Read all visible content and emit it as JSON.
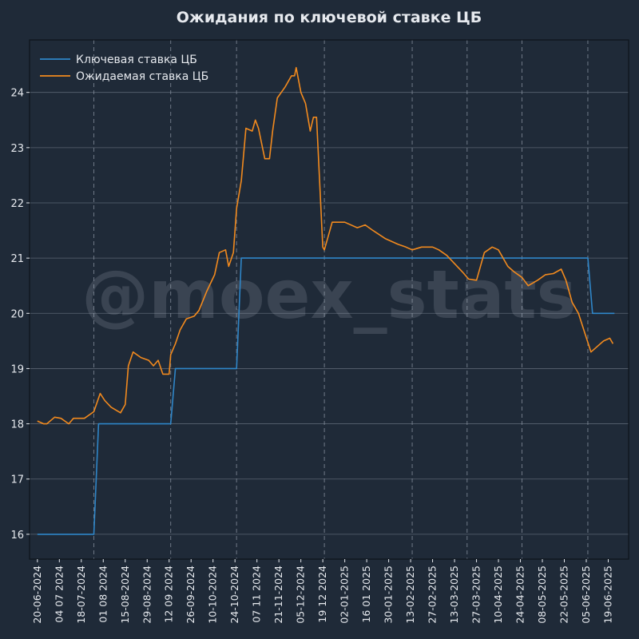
{
  "watermark": "@moex_stats",
  "colors": {
    "background": "#1f2a38",
    "text": "#e6e9ee",
    "grid": "#5a6472",
    "key_rate": "#2f86c8",
    "expected_rate": "#f28a1e",
    "watermark": "#b4bcc8"
  },
  "chart_data": {
    "type": "line",
    "title": "Ожидания по ключевой ставке ЦБ",
    "xlabel": "",
    "ylabel": "",
    "x_range": [
      "2024-06-15",
      "2025-07-02"
    ],
    "ylim": [
      15.55,
      24.95
    ],
    "yticks": [
      16,
      17,
      18,
      19,
      20,
      21,
      22,
      23,
      24
    ],
    "xtick_dates": [
      "2024-06-20",
      "2024-07-04",
      "2024-07-18",
      "2024-08-01",
      "2024-08-15",
      "2024-08-29",
      "2024-09-12",
      "2024-09-26",
      "2024-10-10",
      "2024-10-24",
      "2024-11-07",
      "2024-11-21",
      "2024-12-05",
      "2024-12-19",
      "2025-01-02",
      "2025-01-16",
      "2025-01-30",
      "2025-02-13",
      "2025-02-27",
      "2025-03-13",
      "2025-03-27",
      "2025-04-10",
      "2025-04-24",
      "2025-05-08",
      "2025-05-22",
      "2025-06-05",
      "2025-06-19"
    ],
    "xtick_labels": [
      "20-06-2024",
      "04 07 2024",
      "18-07-2024",
      "01 08 2024",
      "15-08-2024",
      "29-08-2024",
      "12 09 2024",
      "26-09-2024",
      "10-10-2024",
      "24-10-2024",
      "07 11 2024",
      "21-11-2024",
      "05-12-2024",
      "19 12 2024",
      "02-01-2025",
      "16 01 2025",
      "30-01-2025",
      "13-02-2025",
      "27-02-2025",
      "13-03-2025",
      "27-03-2025",
      "10-04-2025",
      "24-04-2025",
      "08-05-2025",
      "22-05-2025",
      "05-06-2025",
      "19-06-2025"
    ],
    "vlines_dashed": [
      "2024-07-26",
      "2024-09-13",
      "2024-10-25",
      "2024-12-20",
      "2025-02-14",
      "2025-03-21",
      "2025-04-25",
      "2025-06-06"
    ],
    "grid": true,
    "legend_position": "top-left",
    "series": [
      {
        "name": "Ключевая ставка ЦБ",
        "color_key": "key_rate",
        "points": [
          [
            "2024-06-20",
            16.0
          ],
          [
            "2024-07-26",
            16.0
          ],
          [
            "2024-07-29",
            18.0
          ],
          [
            "2024-09-13",
            18.0
          ],
          [
            "2024-09-16",
            19.0
          ],
          [
            "2024-10-25",
            19.0
          ],
          [
            "2024-10-28",
            21.0
          ],
          [
            "2025-06-06",
            21.0
          ],
          [
            "2025-06-09",
            20.0
          ],
          [
            "2025-06-23",
            20.0
          ]
        ]
      },
      {
        "name": "Ожидаемая ставка ЦБ",
        "color_key": "expected_rate",
        "points": [
          [
            "2024-06-20",
            18.05
          ],
          [
            "2024-06-24",
            18.0
          ],
          [
            "2024-06-26",
            18.0
          ],
          [
            "2024-07-01",
            18.12
          ],
          [
            "2024-07-05",
            18.1
          ],
          [
            "2024-07-10",
            18.0
          ],
          [
            "2024-07-13",
            18.1
          ],
          [
            "2024-07-20",
            18.1
          ],
          [
            "2024-07-26",
            18.22
          ],
          [
            "2024-07-30",
            18.55
          ],
          [
            "2024-08-02",
            18.42
          ],
          [
            "2024-08-06",
            18.3
          ],
          [
            "2024-08-12",
            18.2
          ],
          [
            "2024-08-15",
            18.35
          ],
          [
            "2024-08-17",
            19.05
          ],
          [
            "2024-08-20",
            19.3
          ],
          [
            "2024-08-25",
            19.2
          ],
          [
            "2024-08-30",
            19.15
          ],
          [
            "2024-09-02",
            19.05
          ],
          [
            "2024-09-05",
            19.15
          ],
          [
            "2024-09-08",
            18.9
          ],
          [
            "2024-09-12",
            18.9
          ],
          [
            "2024-09-13",
            19.25
          ],
          [
            "2024-09-16",
            19.45
          ],
          [
            "2024-09-19",
            19.7
          ],
          [
            "2024-09-23",
            19.9
          ],
          [
            "2024-09-28",
            19.95
          ],
          [
            "2024-10-01",
            20.05
          ],
          [
            "2024-10-06",
            20.4
          ],
          [
            "2024-10-11",
            20.7
          ],
          [
            "2024-10-14",
            21.1
          ],
          [
            "2024-10-18",
            21.15
          ],
          [
            "2024-10-20",
            20.85
          ],
          [
            "2024-10-23",
            21.1
          ],
          [
            "2024-10-25",
            21.9
          ],
          [
            "2024-10-28",
            22.4
          ],
          [
            "2024-10-31",
            23.35
          ],
          [
            "2024-11-04",
            23.3
          ],
          [
            "2024-11-06",
            23.5
          ],
          [
            "2024-11-08",
            23.35
          ],
          [
            "2024-11-12",
            22.8
          ],
          [
            "2024-11-15",
            22.8
          ],
          [
            "2024-11-17",
            23.3
          ],
          [
            "2024-11-20",
            23.9
          ],
          [
            "2024-11-25",
            24.1
          ],
          [
            "2024-11-29",
            24.3
          ],
          [
            "2024-12-01",
            24.3
          ],
          [
            "2024-12-02",
            24.45
          ],
          [
            "2024-12-05",
            24.0
          ],
          [
            "2024-12-08",
            23.8
          ],
          [
            "2024-12-11",
            23.3
          ],
          [
            "2024-12-13",
            23.55
          ],
          [
            "2024-12-15",
            23.55
          ],
          [
            "2024-12-19",
            21.2
          ],
          [
            "2024-12-20",
            21.15
          ],
          [
            "2024-12-25",
            21.65
          ],
          [
            "2025-01-02",
            21.65
          ],
          [
            "2025-01-10",
            21.55
          ],
          [
            "2025-01-15",
            21.6
          ],
          [
            "2025-01-20",
            21.5
          ],
          [
            "2025-01-28",
            21.35
          ],
          [
            "2025-02-05",
            21.25
          ],
          [
            "2025-02-10",
            21.2
          ],
          [
            "2025-02-14",
            21.15
          ],
          [
            "2025-02-20",
            21.2
          ],
          [
            "2025-02-27",
            21.2
          ],
          [
            "2025-03-03",
            21.15
          ],
          [
            "2025-03-08",
            21.05
          ],
          [
            "2025-03-13",
            20.9
          ],
          [
            "2025-03-18",
            20.75
          ],
          [
            "2025-03-22",
            20.62
          ],
          [
            "2025-03-27",
            20.6
          ],
          [
            "2025-04-01",
            21.1
          ],
          [
            "2025-04-06",
            21.2
          ],
          [
            "2025-04-10",
            21.15
          ],
          [
            "2025-04-16",
            20.85
          ],
          [
            "2025-04-20",
            20.75
          ],
          [
            "2025-04-25",
            20.65
          ],
          [
            "2025-04-29",
            20.5
          ],
          [
            "2025-05-05",
            20.6
          ],
          [
            "2025-05-10",
            20.7
          ],
          [
            "2025-05-15",
            20.72
          ],
          [
            "2025-05-20",
            20.8
          ],
          [
            "2025-05-23",
            20.6
          ],
          [
            "2025-05-27",
            20.2
          ],
          [
            "2025-05-31",
            20.0
          ],
          [
            "2025-06-04",
            19.65
          ],
          [
            "2025-06-08",
            19.3
          ],
          [
            "2025-06-12",
            19.4
          ],
          [
            "2025-06-16",
            19.5
          ],
          [
            "2025-06-20",
            19.55
          ],
          [
            "2025-06-22",
            19.45
          ]
        ]
      }
    ]
  }
}
